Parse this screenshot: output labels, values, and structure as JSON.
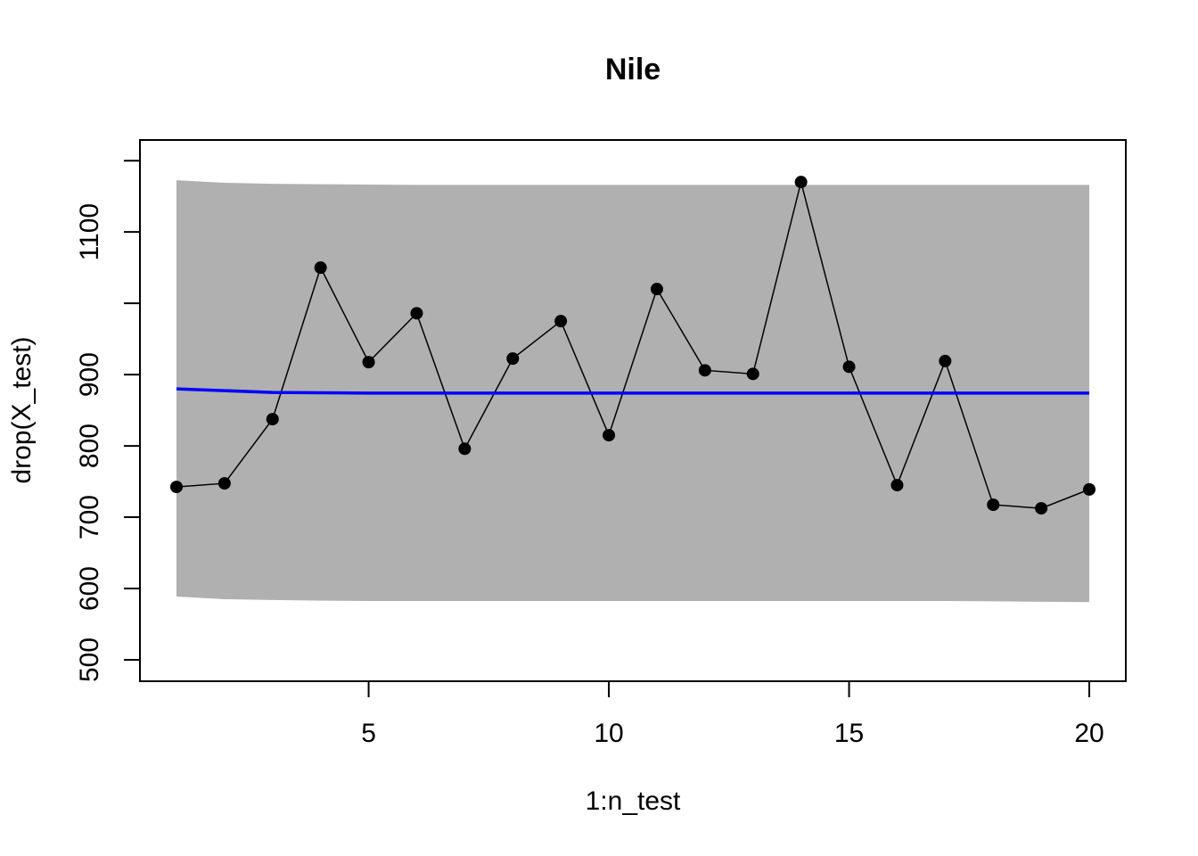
{
  "chart_data": {
    "type": "line",
    "title": "Nile",
    "x_label": "1:n_test",
    "y_label": "drop(X_test)",
    "x": [
      1,
      2,
      3,
      4,
      5,
      6,
      7,
      8,
      9,
      10,
      11,
      12,
      13,
      14,
      15,
      16,
      17,
      18,
      19,
      20
    ],
    "series": [
      {
        "color": "#000000",
        "marker": "circle",
        "values": [
          742.5,
          747.5,
          837.5,
          1050,
          917.5,
          986,
          796,
          922.5,
          975,
          815,
          1020,
          906,
          901,
          1170,
          911,
          745,
          919,
          717.5,
          712.5,
          739
        ]
      },
      {
        "color": "#0000ff",
        "values": [
          880,
          877.5,
          875,
          874.5,
          874,
          874,
          874,
          874,
          874,
          874,
          874,
          874,
          874,
          874,
          874,
          874,
          874,
          874,
          874,
          874
        ]
      }
    ],
    "band": {
      "color": "#b0b0b0",
      "upper": [
        1172.5,
        1169,
        1167.5,
        1167,
        1166.5,
        1166,
        1166,
        1166,
        1166,
        1166,
        1166,
        1166,
        1166,
        1166,
        1166,
        1166,
        1166,
        1166,
        1166,
        1166
      ],
      "lower": [
        588.75,
        585,
        584,
        583,
        582.5,
        582.5,
        582.5,
        582.5,
        582.5,
        582.5,
        582.5,
        582.5,
        582.5,
        582.5,
        582.5,
        582.5,
        582.5,
        582,
        581.5,
        581
      ]
    },
    "xlim": [
      0.24,
      20.76
    ],
    "ylim": [
      470,
      1229
    ],
    "xticks": [
      5,
      10,
      15,
      20
    ],
    "yticks": [
      500,
      600,
      700,
      800,
      900,
      {
        "value": 1000,
        "label": null
      },
      1100,
      {
        "value": 1200,
        "label": null
      }
    ]
  }
}
